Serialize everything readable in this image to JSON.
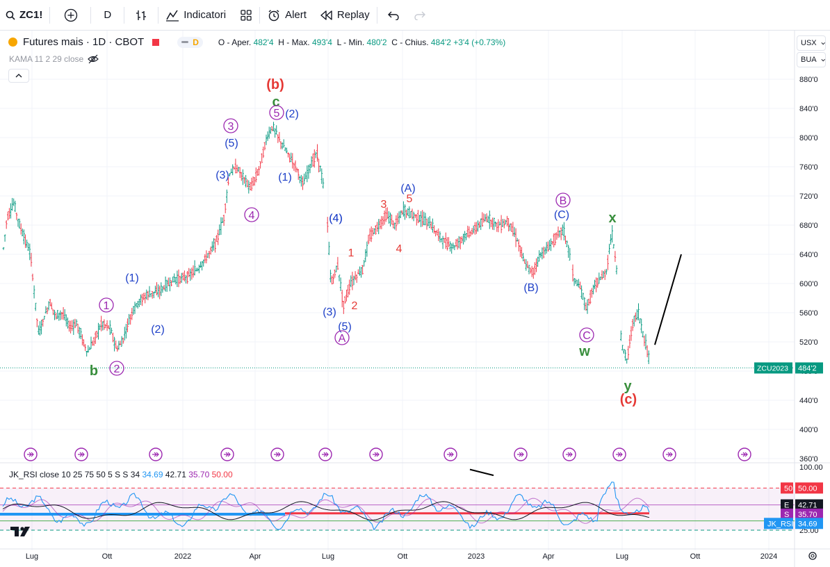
{
  "toolbar": {
    "symbol": "ZC1!",
    "interval": "D",
    "indicators_label": "Indicatori",
    "alert_label": "Alert",
    "replay_label": "Replay"
  },
  "legend": {
    "title": "Futures mais · 1D · CBOT",
    "pill_letter": "D",
    "o_label": "O - Aper.",
    "o_value": "482'4",
    "h_label": "H - Max.",
    "h_value": "493'4",
    "l_label": "L - Min.",
    "l_value": "480'2",
    "c_label": "C - Chius.",
    "c_value": "484'2",
    "change": "+3'4 (+0.73%)",
    "kama": "KAMA 11 2 29 close"
  },
  "price_scale": {
    "unit": "USX",
    "quote": "BUA",
    "ticks": [
      "880'0",
      "840'0",
      "800'0",
      "760'0",
      "720'0",
      "680'0",
      "640'0",
      "600'0",
      "560'0",
      "520'0",
      "480'0",
      "440'0",
      "400'0",
      "360'0"
    ],
    "last_label_symbol": "ZCU2023",
    "last_label_value": "484'2"
  },
  "time_axis": {
    "ticks": [
      "Lug",
      "Ott",
      "2022",
      "Apr",
      "Lug",
      "Ott",
      "2023",
      "Apr",
      "Lug",
      "Ott",
      "2024"
    ]
  },
  "rsi": {
    "label": "JK_RSI close 10 25 75 50 5 S S 34",
    "v1": "34.69",
    "v2": "42.71",
    "v3": "35.70",
    "v4": "50.00",
    "scale_top": "100.00",
    "scale_bottom": "25.00",
    "badge_50_label": "50",
    "badge_50_value": "50.00",
    "badge_e_label": "E",
    "badge_e_value": "42.71",
    "badge_s_label": "S",
    "badge_s_value": "35.70",
    "badge_jk_label": "JK_RSI",
    "badge_jk_value": "34.69"
  },
  "waves": [
    {
      "t": "(b)",
      "color": "#e53935",
      "big": true
    },
    {
      "t": "c",
      "color": "#388e3c",
      "big": true
    },
    {
      "t": "5",
      "color": "#9c27b0",
      "circle": true
    },
    {
      "t": "(2)",
      "color": "#1e40c8"
    },
    {
      "t": "3",
      "color": "#9c27b0",
      "circle": true
    },
    {
      "t": "(5)",
      "color": "#1e40c8"
    },
    {
      "t": "(3)",
      "color": "#1e40c8"
    },
    {
      "t": "(1)",
      "color": "#1e40c8"
    },
    {
      "t": "4",
      "color": "#9c27b0",
      "circle": true
    },
    {
      "t": "(4)",
      "color": "#1e40c8"
    },
    {
      "t": "(1)",
      "color": "#1e40c8"
    },
    {
      "t": "1",
      "color": "#9c27b0",
      "circle": true
    },
    {
      "t": "(2)",
      "color": "#1e40c8"
    },
    {
      "t": "2",
      "color": "#9c27b0",
      "circle": true
    },
    {
      "t": "b",
      "color": "#388e3c",
      "big": true
    },
    {
      "t": "(4)",
      "color": "#1e40c8"
    },
    {
      "t": "1",
      "color": "#e53935"
    },
    {
      "t": "2",
      "color": "#e53935"
    },
    {
      "t": "(3)",
      "color": "#1e40c8"
    },
    {
      "t": "(5)",
      "color": "#1e40c8"
    },
    {
      "t": "A",
      "color": "#9c27b0",
      "circle": true
    },
    {
      "t": "3",
      "color": "#e53935"
    },
    {
      "t": "4",
      "color": "#e53935"
    },
    {
      "t": "5",
      "color": "#e53935"
    },
    {
      "t": "(A)",
      "color": "#1e40c8"
    },
    {
      "t": "B",
      "color": "#9c27b0",
      "circle": true
    },
    {
      "t": "(C)",
      "color": "#1e40c8"
    },
    {
      "t": "(B)",
      "color": "#1e40c8"
    },
    {
      "t": "x",
      "color": "#388e3c",
      "big": true
    },
    {
      "t": "C",
      "color": "#9c27b0",
      "circle": true
    },
    {
      "t": "w",
      "color": "#388e3c",
      "big": true
    },
    {
      "t": "y",
      "color": "#388e3c",
      "big": true
    },
    {
      "t": "(c)",
      "color": "#e53935",
      "big": true
    }
  ],
  "colors": {
    "up": "#089981",
    "down": "#f23645",
    "text": "#131722",
    "grid": "#f0f3fa",
    "rsi_fast": "#2196f3",
    "rsi_slow": "#131722",
    "rsi_signal": "#9c27b0",
    "rsi_mid": "#f23645"
  },
  "chart_data": {
    "type": "candlestick",
    "y_unit": "US cents/bushel",
    "ylim": [
      360,
      880
    ],
    "x": [
      "2021-06",
      "2021-07",
      "2021-08",
      "2021-09",
      "2021-10",
      "2021-11",
      "2021-12",
      "2022-01",
      "2022-02",
      "2022-03",
      "2022-04",
      "2022-05",
      "2022-06",
      "2022-07",
      "2022-08",
      "2022-09",
      "2022-10",
      "2022-11",
      "2022-12",
      "2023-01",
      "2023-02",
      "2023-03",
      "2023-04",
      "2023-05",
      "2023-06",
      "2023-07",
      "2023-08"
    ],
    "close_approx": [
      700,
      650,
      560,
      540,
      515,
      540,
      585,
      600,
      640,
      720,
      760,
      810,
      760,
      590,
      610,
      690,
      690,
      660,
      670,
      680,
      675,
      625,
      670,
      590,
      600,
      520,
      484
    ],
    "last_close": 484.25,
    "projection_line": {
      "from": [
        516,
        "2023-08"
      ],
      "to": [
        640,
        "2023-10"
      ]
    },
    "rsi": {
      "ylim": [
        20,
        100
      ],
      "levels": [
        25,
        50,
        75
      ],
      "last": {
        "jk_rsi": 34.69,
        "e": 42.71,
        "s": 35.7,
        "mid": 50.0
      }
    }
  }
}
